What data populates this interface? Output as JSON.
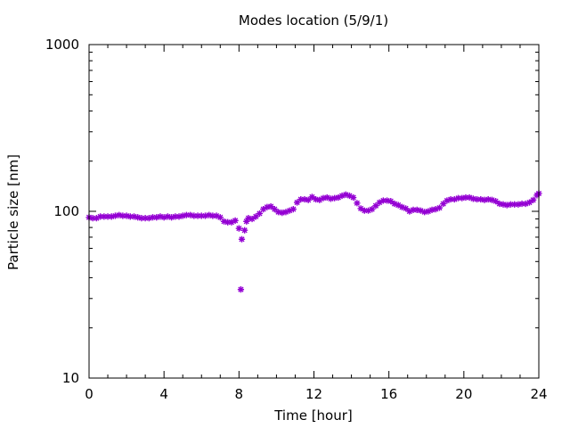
{
  "chart_data": {
    "type": "scatter",
    "title": "Modes location (5/9/1)",
    "xlabel": "Time [hour]",
    "ylabel": "Particle size [nm]",
    "xlim": [
      0,
      24
    ],
    "ylim": [
      10,
      1000
    ],
    "yscale": "log",
    "xticks": [
      0,
      4,
      8,
      12,
      16,
      20,
      24
    ],
    "xtick_labels": [
      "0",
      "4",
      "8",
      "12",
      "16",
      "20",
      "24"
    ],
    "yticks": [
      10,
      100,
      1000
    ],
    "ytick_labels": [
      "10",
      "100",
      "1000"
    ],
    "grid": false,
    "marker": "star",
    "series": [
      {
        "color": "#9400d3",
        "points": [
          [
            0.0,
            92
          ],
          [
            0.2,
            91
          ],
          [
            0.4,
            91
          ],
          [
            0.6,
            93
          ],
          [
            0.8,
            93
          ],
          [
            1.0,
            93
          ],
          [
            1.2,
            93
          ],
          [
            1.4,
            94
          ],
          [
            1.6,
            95
          ],
          [
            1.8,
            94
          ],
          [
            2.0,
            94
          ],
          [
            2.2,
            93
          ],
          [
            2.4,
            93
          ],
          [
            2.6,
            92
          ],
          [
            2.8,
            91
          ],
          [
            3.0,
            91
          ],
          [
            3.2,
            91
          ],
          [
            3.4,
            92
          ],
          [
            3.6,
            92
          ],
          [
            3.8,
            93
          ],
          [
            4.0,
            92
          ],
          [
            4.2,
            93
          ],
          [
            4.4,
            92
          ],
          [
            4.6,
            93
          ],
          [
            4.8,
            93
          ],
          [
            5.0,
            94
          ],
          [
            5.2,
            95
          ],
          [
            5.4,
            95
          ],
          [
            5.6,
            94
          ],
          [
            5.8,
            94
          ],
          [
            6.0,
            94
          ],
          [
            6.2,
            94
          ],
          [
            6.4,
            95
          ],
          [
            6.6,
            94
          ],
          [
            6.8,
            94
          ],
          [
            7.0,
            92
          ],
          [
            7.2,
            87
          ],
          [
            7.4,
            86
          ],
          [
            7.6,
            86
          ],
          [
            7.8,
            88
          ],
          [
            8.0,
            79
          ],
          [
            8.1,
            34
          ],
          [
            8.15,
            68
          ],
          [
            8.3,
            77
          ],
          [
            8.4,
            87
          ],
          [
            8.5,
            91
          ],
          [
            8.7,
            90
          ],
          [
            8.9,
            93
          ],
          [
            9.1,
            97
          ],
          [
            9.3,
            103
          ],
          [
            9.5,
            106
          ],
          [
            9.7,
            107
          ],
          [
            9.9,
            103
          ],
          [
            10.1,
            99
          ],
          [
            10.3,
            98
          ],
          [
            10.5,
            99
          ],
          [
            10.7,
            101
          ],
          [
            10.9,
            103
          ],
          [
            11.1,
            113
          ],
          [
            11.3,
            118
          ],
          [
            11.5,
            118
          ],
          [
            11.7,
            117
          ],
          [
            11.9,
            122
          ],
          [
            12.1,
            118
          ],
          [
            12.3,
            117
          ],
          [
            12.5,
            120
          ],
          [
            12.7,
            121
          ],
          [
            12.9,
            119
          ],
          [
            13.1,
            120
          ],
          [
            13.3,
            121
          ],
          [
            13.5,
            124
          ],
          [
            13.7,
            126
          ],
          [
            13.9,
            124
          ],
          [
            14.1,
            121
          ],
          [
            14.3,
            112
          ],
          [
            14.5,
            104
          ],
          [
            14.7,
            101
          ],
          [
            14.9,
            101
          ],
          [
            15.1,
            103
          ],
          [
            15.3,
            108
          ],
          [
            15.5,
            113
          ],
          [
            15.7,
            116
          ],
          [
            15.9,
            116
          ],
          [
            16.1,
            115
          ],
          [
            16.3,
            111
          ],
          [
            16.5,
            109
          ],
          [
            16.7,
            106
          ],
          [
            16.9,
            104
          ],
          [
            17.1,
            100
          ],
          [
            17.3,
            102
          ],
          [
            17.5,
            102
          ],
          [
            17.7,
            101
          ],
          [
            17.9,
            99
          ],
          [
            18.1,
            100
          ],
          [
            18.3,
            102
          ],
          [
            18.5,
            103
          ],
          [
            18.7,
            105
          ],
          [
            18.9,
            111
          ],
          [
            19.1,
            116
          ],
          [
            19.3,
            118
          ],
          [
            19.5,
            118
          ],
          [
            19.7,
            120
          ],
          [
            19.9,
            120
          ],
          [
            20.1,
            121
          ],
          [
            20.3,
            121
          ],
          [
            20.5,
            119
          ],
          [
            20.7,
            118
          ],
          [
            20.9,
            118
          ],
          [
            21.1,
            117
          ],
          [
            21.3,
            118
          ],
          [
            21.5,
            117
          ],
          [
            21.7,
            115
          ],
          [
            21.9,
            111
          ],
          [
            22.1,
            110
          ],
          [
            22.3,
            109
          ],
          [
            22.5,
            110
          ],
          [
            22.7,
            110
          ],
          [
            22.9,
            110
          ],
          [
            23.1,
            111
          ],
          [
            23.3,
            111
          ],
          [
            23.5,
            113
          ],
          [
            23.7,
            117
          ],
          [
            23.9,
            125
          ],
          [
            24.0,
            128
          ]
        ]
      }
    ]
  }
}
